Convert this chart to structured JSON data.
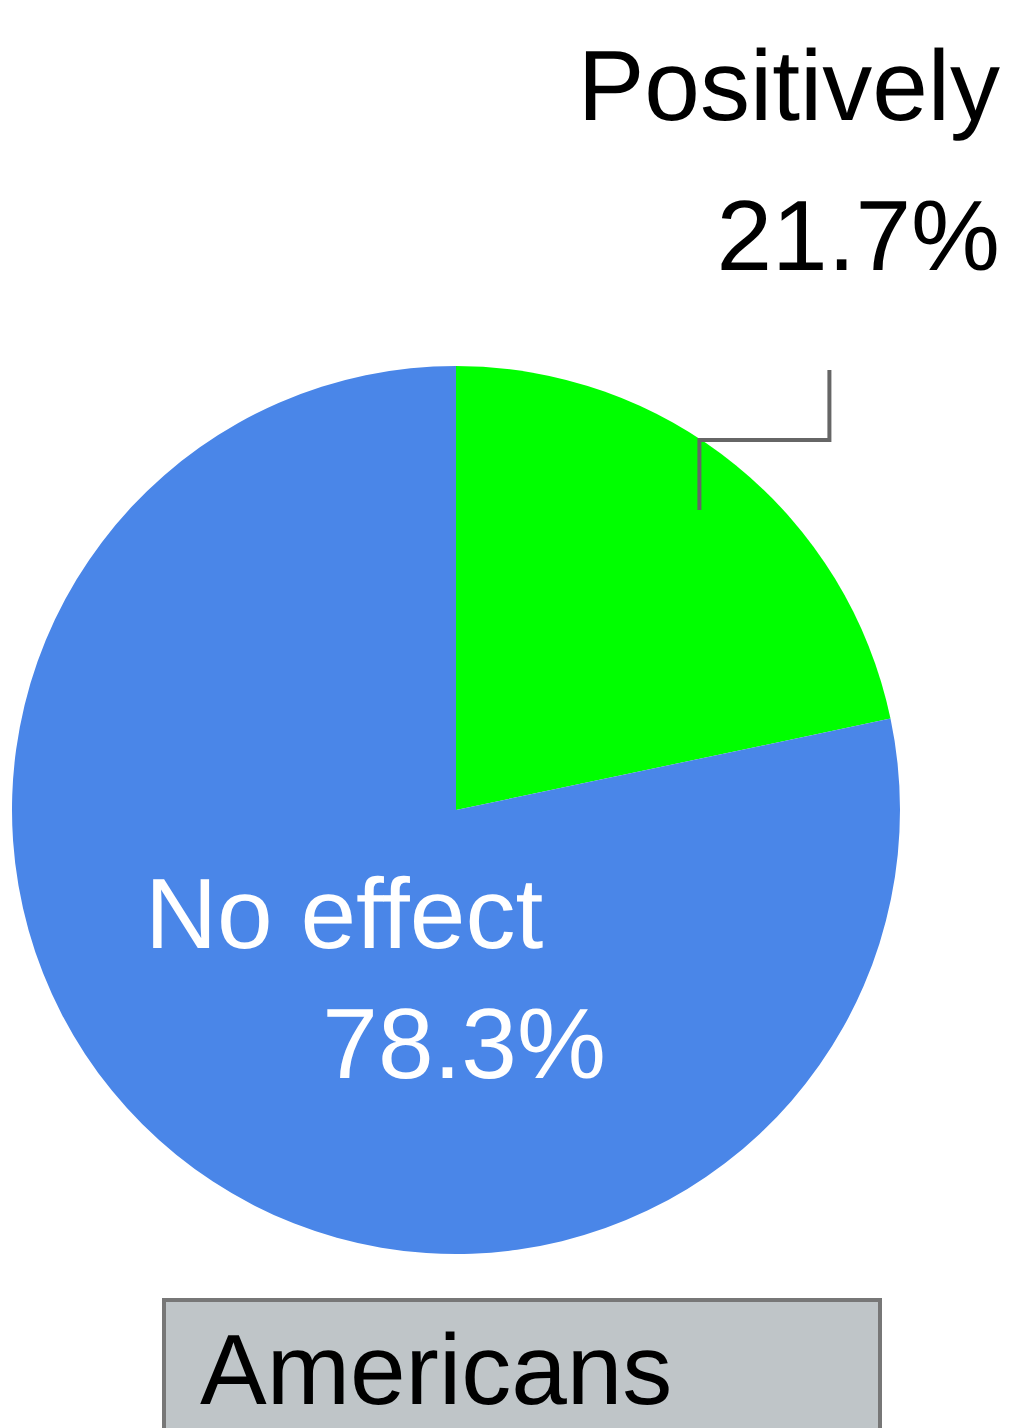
{
  "chart_data": {
    "type": "pie",
    "title": "Americans",
    "categories": [
      "Positively",
      "No effect"
    ],
    "values": [
      21.7,
      78.3
    ],
    "colors": [
      "#00ff00",
      "#4a86e8"
    ],
    "value_labels": [
      "21.7%",
      "78.3%"
    ]
  }
}
